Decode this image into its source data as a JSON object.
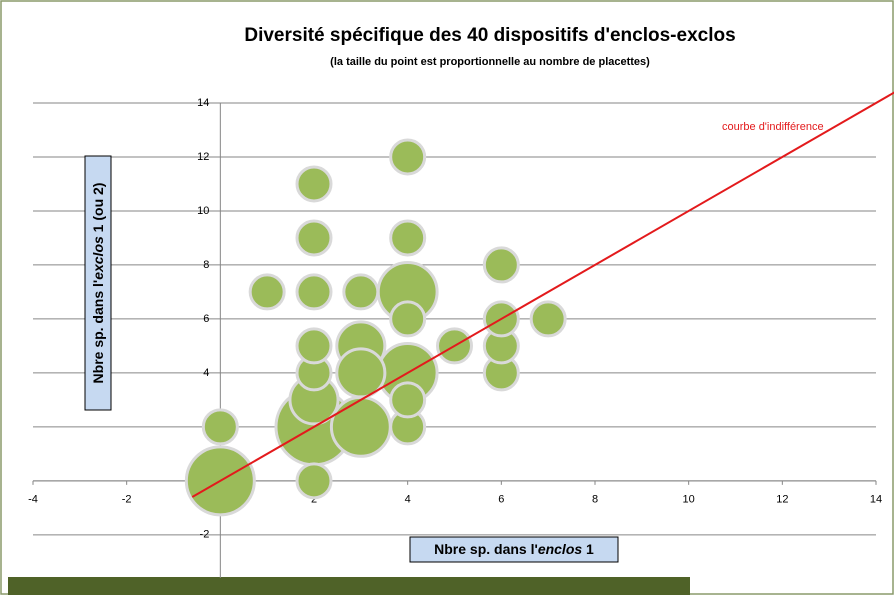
{
  "chart_data": {
    "type": "bubble",
    "title": "Diversité spécifique des 40 dispositifs d'enclos-exclos",
    "subtitle": "(la taille du point est proportionnelle au nombre de placettes)",
    "x_label": [
      "Nbre sp. dans l'",
      "enclos",
      " 1"
    ],
    "y_label": [
      "Nbre sp. dans l'",
      "exclos",
      " 1 (ou 2)"
    ],
    "xlim": [
      -4,
      14
    ],
    "ylim": [
      -3.6,
      14
    ],
    "xticks": [
      -4,
      -2,
      0,
      2,
      4,
      6,
      8,
      10,
      12,
      14
    ],
    "yticks": [
      -2,
      0,
      2,
      4,
      6,
      8,
      10,
      12,
      14
    ],
    "grid": true,
    "series": [
      {
        "color": "#9bbb59",
        "x": [
          2,
          0,
          3,
          4,
          4,
          3,
          3,
          2,
          0,
          1,
          2,
          2,
          2,
          2,
          2,
          2,
          3,
          4,
          4,
          4,
          4,
          4,
          5,
          6,
          6,
          6,
          6,
          7
        ],
        "y": [
          2,
          0,
          2,
          4,
          7,
          5,
          4,
          3,
          2,
          7,
          0,
          4,
          5,
          7,
          9,
          11,
          7,
          2,
          3,
          6,
          9,
          12,
          5,
          4,
          5,
          6,
          8,
          6
        ],
        "size": [
          5,
          4,
          3,
          3,
          3,
          2,
          2,
          2,
          1,
          1,
          1,
          1,
          1,
          1,
          1,
          1,
          1,
          1,
          1,
          1,
          1,
          1,
          1,
          1,
          1,
          1,
          1,
          1
        ]
      }
    ],
    "reference_line": {
      "label": "courbe d'indifférence",
      "color": "#e31a1c",
      "x": [
        -0.6,
        14.4
      ],
      "y": [
        -0.6,
        14.4
      ]
    }
  }
}
